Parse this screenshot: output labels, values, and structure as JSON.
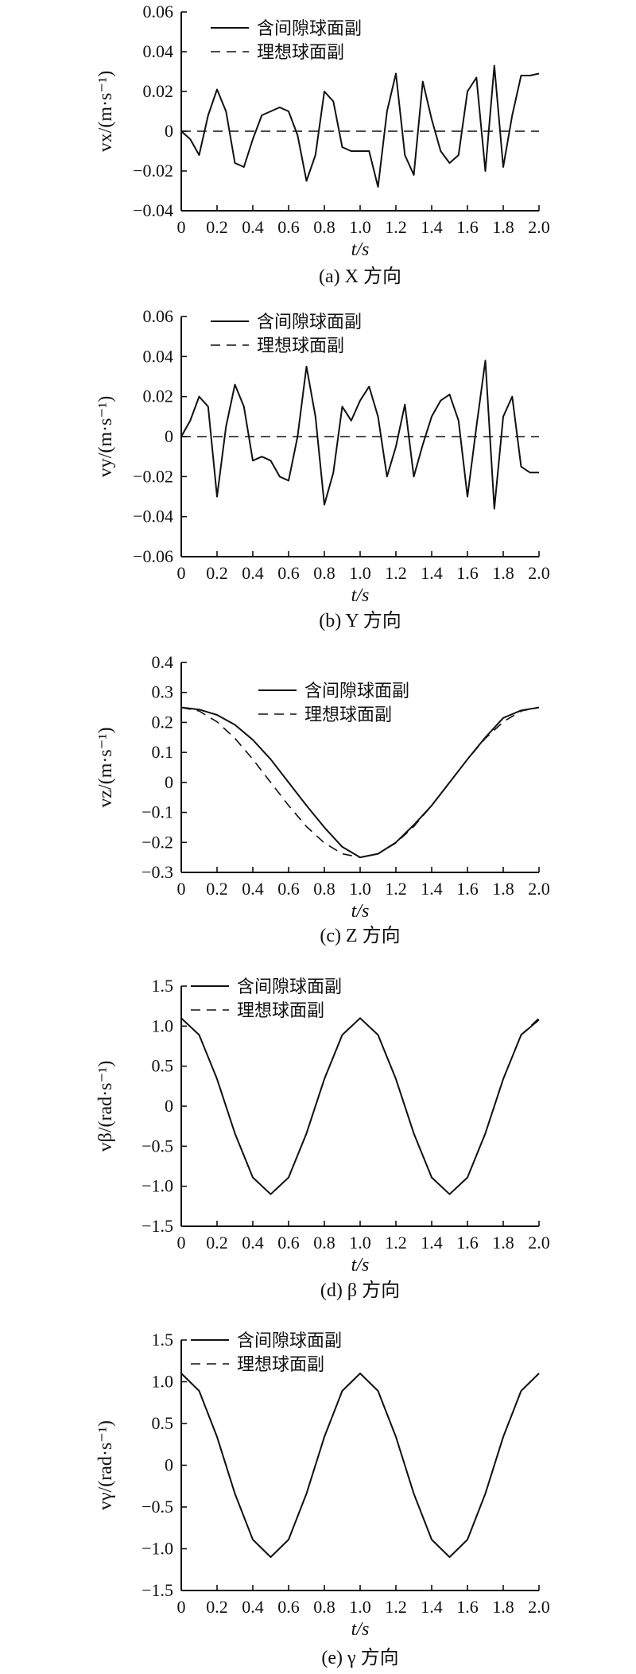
{
  "chart_data": [
    {
      "type": "line",
      "caption": "(a) X 方向",
      "xlabel": "t/s",
      "ylabel": "vx/(m·s⁻¹)",
      "xlim": [
        0,
        2.0
      ],
      "ylim": [
        -0.04,
        0.06
      ],
      "xticks": [
        "0",
        "0.2",
        "0.4",
        "0.6",
        "0.8",
        "1.0",
        "1.2",
        "1.4",
        "1.6",
        "1.8",
        "2.0"
      ],
      "yticks": [
        "-0.04",
        "-0.02",
        "0",
        "0.02",
        "0.04",
        "0.06"
      ],
      "legend": {
        "position": "top-left",
        "entries": [
          "含间隙球面副",
          "理想球面副"
        ]
      },
      "series": [
        {
          "name": "含间隙球面副",
          "style": "solid",
          "x": [
            0,
            0.05,
            0.1,
            0.15,
            0.2,
            0.25,
            0.3,
            0.35,
            0.4,
            0.45,
            0.5,
            0.55,
            0.6,
            0.65,
            0.7,
            0.75,
            0.8,
            0.85,
            0.9,
            0.95,
            1.0,
            1.05,
            1.1,
            1.15,
            1.2,
            1.25,
            1.3,
            1.35,
            1.4,
            1.45,
            1.5,
            1.55,
            1.6,
            1.65,
            1.7,
            1.75,
            1.8,
            1.85,
            1.9,
            1.95,
            2.0
          ],
          "y": [
            0,
            -0.004,
            -0.012,
            0.008,
            0.021,
            0.01,
            -0.016,
            -0.018,
            -0.004,
            0.008,
            0.01,
            0.012,
            0.01,
            -0.002,
            -0.025,
            -0.012,
            0.02,
            0.015,
            -0.008,
            -0.01,
            -0.01,
            -0.01,
            -0.028,
            0.01,
            0.029,
            -0.012,
            -0.022,
            0.025,
            0.006,
            -0.01,
            -0.016,
            -0.012,
            0.02,
            0.027,
            -0.02,
            0.033,
            -0.018,
            0.008,
            0.028,
            0.028,
            0.029
          ]
        },
        {
          "name": "理想球面副",
          "style": "dashed",
          "x": [
            0,
            2.0
          ],
          "y": [
            0,
            0
          ]
        }
      ]
    },
    {
      "type": "line",
      "caption": "(b) Y 方向",
      "xlabel": "t/s",
      "ylabel": "vy/(m·s⁻¹)",
      "xlim": [
        0,
        2.0
      ],
      "ylim": [
        -0.06,
        0.06
      ],
      "xticks": [
        "0",
        "0.2",
        "0.4",
        "0.6",
        "0.8",
        "1.0",
        "1.2",
        "1.4",
        "1.6",
        "1.8",
        "2.0"
      ],
      "yticks": [
        "-0.06",
        "-0.04",
        "-0.02",
        "0",
        "0.02",
        "0.04",
        "0.06"
      ],
      "legend": {
        "position": "top-left",
        "entries": [
          "含间隙球面副",
          "理想球面副"
        ]
      },
      "series": [
        {
          "name": "含间隙球面副",
          "style": "solid",
          "x": [
            0,
            0.05,
            0.1,
            0.15,
            0.2,
            0.25,
            0.3,
            0.35,
            0.4,
            0.45,
            0.5,
            0.55,
            0.6,
            0.65,
            0.7,
            0.75,
            0.8,
            0.85,
            0.9,
            0.95,
            1.0,
            1.05,
            1.1,
            1.15,
            1.2,
            1.25,
            1.3,
            1.35,
            1.4,
            1.45,
            1.5,
            1.55,
            1.6,
            1.65,
            1.7,
            1.75,
            1.8,
            1.85,
            1.9,
            1.95,
            2.0
          ],
          "y": [
            0,
            0.008,
            0.02,
            0.015,
            -0.03,
            0.005,
            0.026,
            0.015,
            -0.012,
            -0.01,
            -0.012,
            -0.02,
            -0.022,
            0.0,
            0.035,
            0.01,
            -0.034,
            -0.018,
            0.015,
            0.008,
            0.018,
            0.025,
            0.01,
            -0.02,
            -0.005,
            0.016,
            -0.02,
            -0.004,
            0.01,
            0.018,
            0.021,
            0.008,
            -0.03,
            0.005,
            0.038,
            -0.036,
            0.01,
            0.02,
            -0.015,
            -0.018,
            -0.018
          ]
        },
        {
          "name": "理想球面副",
          "style": "dashed",
          "x": [
            0,
            2.0
          ],
          "y": [
            0,
            0
          ]
        }
      ]
    },
    {
      "type": "line",
      "caption": "(c) Z 方向",
      "xlabel": "t/s",
      "ylabel": "vz/(m·s⁻¹)",
      "xlim": [
        0,
        2.0
      ],
      "ylim": [
        -0.3,
        0.4
      ],
      "xticks": [
        "0",
        "0.2",
        "0.4",
        "0.6",
        "0.8",
        "1.0",
        "1.2",
        "1.4",
        "1.6",
        "1.8",
        "2.0"
      ],
      "yticks": [
        "-0.3",
        "-0.2",
        "-0.1",
        "0",
        "0.1",
        "0.2",
        "0.3",
        "0.4"
      ],
      "legend": {
        "position": "top-center",
        "entries": [
          "含间隙球面副",
          "理想球面副"
        ]
      },
      "series": [
        {
          "name": "含间隙球面副",
          "style": "solid",
          "x": [
            0,
            0.1,
            0.2,
            0.3,
            0.4,
            0.5,
            0.6,
            0.7,
            0.8,
            0.9,
            1.0,
            1.1,
            1.2,
            1.3,
            1.4,
            1.5,
            1.6,
            1.7,
            1.8,
            1.9,
            2.0
          ],
          "y": [
            0.25,
            0.243,
            0.225,
            0.192,
            0.142,
            0.077,
            0.0,
            -0.077,
            -0.15,
            -0.215,
            -0.25,
            -0.238,
            -0.2,
            -0.142,
            -0.077,
            0.0,
            0.077,
            0.15,
            0.215,
            0.24,
            0.25
          ]
        },
        {
          "name": "理想球面副",
          "style": "dashed",
          "x": [
            0,
            0.1,
            0.2,
            0.3,
            0.4,
            0.5,
            0.6,
            0.7,
            0.8,
            0.9,
            1.0,
            1.1,
            1.2,
            1.3,
            1.4,
            1.5,
            1.6,
            1.7,
            1.8,
            1.9,
            2.0
          ],
          "y": [
            0.25,
            0.238,
            0.202,
            0.147,
            0.077,
            0.0,
            -0.077,
            -0.147,
            -0.202,
            -0.238,
            -0.25,
            -0.238,
            -0.202,
            -0.147,
            -0.077,
            0.0,
            0.077,
            0.147,
            0.202,
            0.238,
            0.25
          ]
        }
      ]
    },
    {
      "type": "line",
      "caption": "(d) β 方向",
      "xlabel": "t/s",
      "ylabel": "vβ/(rad·s⁻¹)",
      "xlim": [
        0,
        2.0
      ],
      "ylim": [
        -1.5,
        1.5
      ],
      "xticks": [
        "0",
        "0.2",
        "0.4",
        "0.6",
        "0.8",
        "1.0",
        "1.2",
        "1.4",
        "1.6",
        "1.8",
        "2.0"
      ],
      "yticks": [
        "-1.5",
        "-1.0",
        "-0.5",
        "0",
        "0.5",
        "1.0",
        "1.5"
      ],
      "legend": {
        "position": "top-left",
        "entries": [
          "含间隙球面副",
          "理想球面副"
        ]
      },
      "series": [
        {
          "name": "含间隙球面副",
          "style": "solid",
          "x": [
            0,
            0.1,
            0.2,
            0.3,
            0.4,
            0.5,
            0.6,
            0.7,
            0.8,
            0.9,
            1.0,
            1.1,
            1.2,
            1.3,
            1.4,
            1.5,
            1.6,
            1.7,
            1.8,
            1.9,
            2.0
          ],
          "y": [
            1.1,
            0.89,
            0.34,
            -0.34,
            -0.89,
            -1.1,
            -0.89,
            -0.34,
            0.34,
            0.89,
            1.1,
            0.89,
            0.34,
            -0.34,
            -0.89,
            -1.1,
            -0.89,
            -0.34,
            0.34,
            0.89,
            1.08
          ]
        },
        {
          "name": "理想球面副",
          "style": "dashed",
          "x": [
            0,
            0.1,
            0.2,
            0.3,
            0.4,
            0.5,
            0.6,
            0.7,
            0.8,
            0.9,
            1.0,
            1.1,
            1.2,
            1.3,
            1.4,
            1.5,
            1.6,
            1.7,
            1.8,
            1.9,
            2.0
          ],
          "y": [
            1.1,
            0.89,
            0.34,
            -0.34,
            -0.89,
            -1.1,
            -0.89,
            -0.34,
            0.34,
            0.89,
            1.1,
            0.89,
            0.34,
            -0.34,
            -0.89,
            -1.1,
            -0.89,
            -0.34,
            0.34,
            0.89,
            1.1
          ]
        }
      ]
    },
    {
      "type": "line",
      "caption": "(e) γ 方向",
      "xlabel": "t/s",
      "ylabel": "vγ/(rad·s⁻¹)",
      "xlim": [
        0,
        2.0
      ],
      "ylim": [
        -1.5,
        1.5
      ],
      "xticks": [
        "0",
        "0.2",
        "0.4",
        "0.6",
        "0.8",
        "1.0",
        "1.2",
        "1.4",
        "1.6",
        "1.8",
        "2.0"
      ],
      "yticks": [
        "-1.5",
        "-1.0",
        "-0.5",
        "0",
        "0.5",
        "1.0",
        "1.5"
      ],
      "legend": {
        "position": "top-left",
        "entries": [
          "含间隙球面副",
          "理想球面副"
        ]
      },
      "series": [
        {
          "name": "含间隙球面副",
          "style": "solid",
          "x": [
            0,
            0.1,
            0.2,
            0.3,
            0.4,
            0.5,
            0.6,
            0.7,
            0.8,
            0.9,
            1.0,
            1.1,
            1.2,
            1.3,
            1.4,
            1.5,
            1.6,
            1.7,
            1.8,
            1.9,
            2.0
          ],
          "y": [
            1.1,
            0.89,
            0.34,
            -0.34,
            -0.89,
            -1.1,
            -0.89,
            -0.34,
            0.34,
            0.89,
            1.1,
            0.89,
            0.34,
            -0.34,
            -0.89,
            -1.1,
            -0.89,
            -0.34,
            0.34,
            0.89,
            1.1
          ]
        },
        {
          "name": "理想球面副",
          "style": "dashed",
          "x": [
            0,
            0.1,
            0.2,
            0.3,
            0.4,
            0.5,
            0.6,
            0.7,
            0.8,
            0.9,
            1.0,
            1.1,
            1.2,
            1.3,
            1.4,
            1.5,
            1.6,
            1.7,
            1.8,
            1.9,
            2.0
          ],
          "y": [
            1.1,
            0.89,
            0.34,
            -0.34,
            -0.89,
            -1.1,
            -0.89,
            -0.34,
            0.34,
            0.89,
            1.1,
            0.89,
            0.34,
            -0.34,
            -0.89,
            -1.1,
            -0.89,
            -0.34,
            0.34,
            0.89,
            1.1
          ]
        }
      ]
    }
  ]
}
